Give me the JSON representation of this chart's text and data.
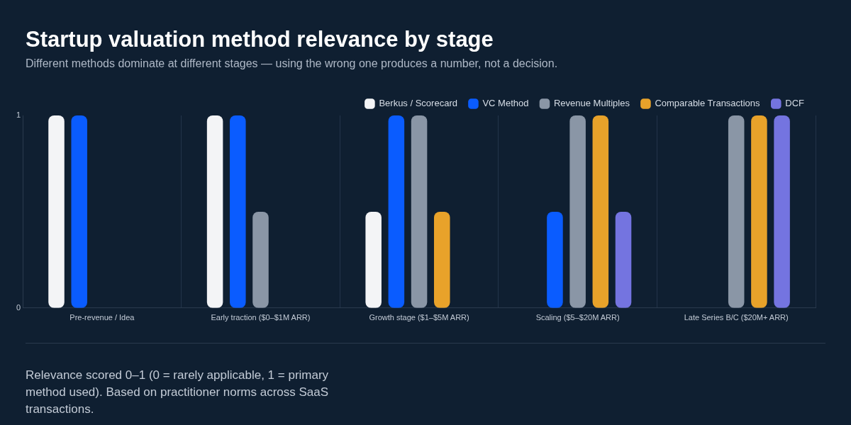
{
  "chart_data": {
    "type": "bar",
    "title": "Startup valuation method relevance by stage",
    "subtitle": "Different methods dominate at different stages — using the wrong one produces a number, not a decision.",
    "categories": [
      "Pre-revenue / Idea",
      "Early traction ($0–$1M ARR)",
      "Growth stage ($1–$5M ARR)",
      "Scaling ($5–$20M ARR)",
      "Late Series B/C ($20M+ ARR)"
    ],
    "series": [
      {
        "name": "Berkus / Scorecard",
        "color": "#f3f4f6",
        "values": [
          1,
          1,
          0.5,
          0,
          0
        ]
      },
      {
        "name": "VC Method",
        "color": "#0a5cff",
        "values": [
          1,
          1,
          1,
          0.5,
          0
        ]
      },
      {
        "name": "Revenue Multiples",
        "color": "#8a96a6",
        "values": [
          0,
          0.5,
          1,
          1,
          1
        ]
      },
      {
        "name": "Comparable Transactions",
        "color": "#e8a22a",
        "values": [
          0,
          0,
          0.5,
          1,
          1
        ]
      },
      {
        "name": "DCF",
        "color": "#7474e0",
        "values": [
          0,
          0,
          0,
          0.5,
          1
        ]
      }
    ],
    "ylim": [
      0,
      1
    ],
    "yticks": [
      0,
      1
    ],
    "grid": "x",
    "legend": "top right",
    "annotations": [
      "Relevance scored 0–1 (0 = rarely applicable, 1 = primary method used). Based on practitioner norms across SaaS transactions."
    ]
  }
}
